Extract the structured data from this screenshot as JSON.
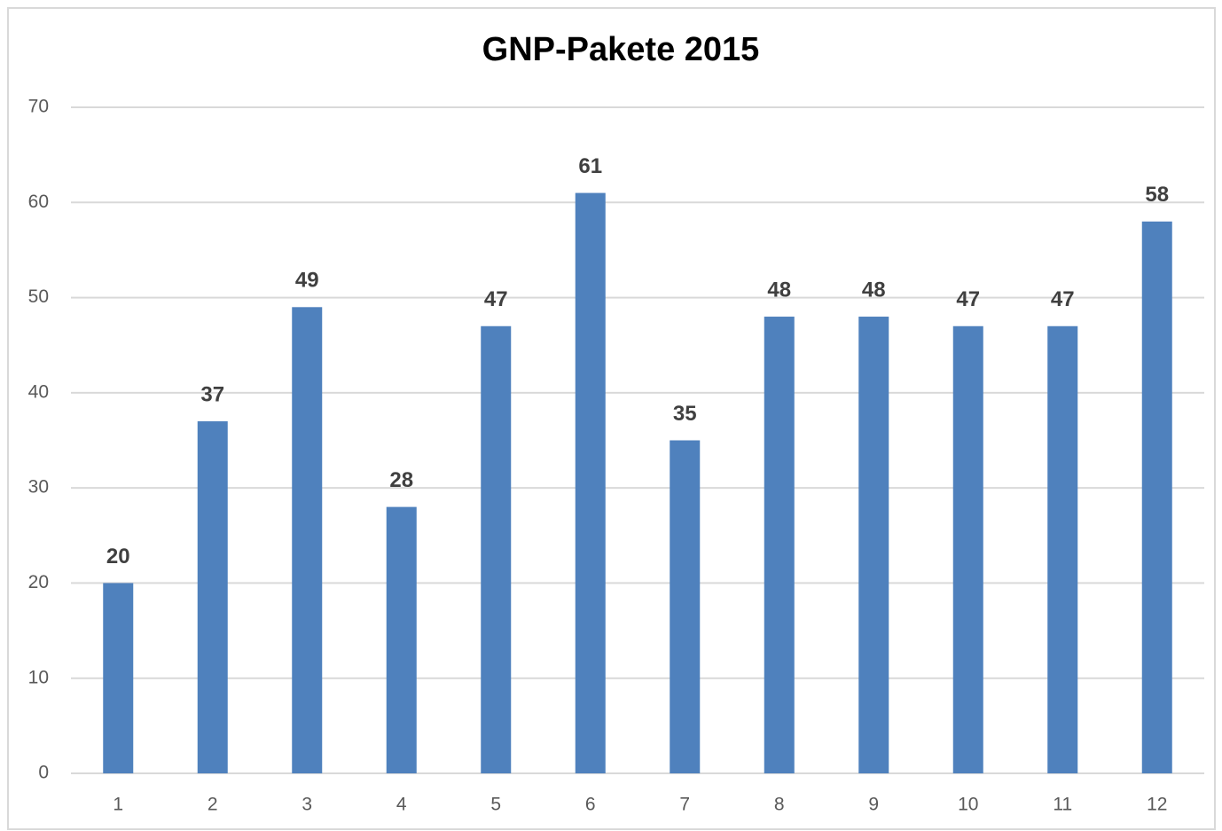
{
  "chart_data": {
    "type": "bar",
    "title": "GNP-Pakete 2015",
    "categories": [
      "1",
      "2",
      "3",
      "4",
      "5",
      "6",
      "7",
      "8",
      "9",
      "10",
      "11",
      "12"
    ],
    "values": [
      20,
      37,
      49,
      28,
      47,
      61,
      35,
      48,
      48,
      47,
      47,
      58
    ],
    "color": "#4f81bd",
    "ylim": [
      0,
      70
    ],
    "yticks": [
      0,
      10,
      20,
      30,
      40,
      50,
      60,
      70
    ],
    "grid": true,
    "data_labels": true
  }
}
